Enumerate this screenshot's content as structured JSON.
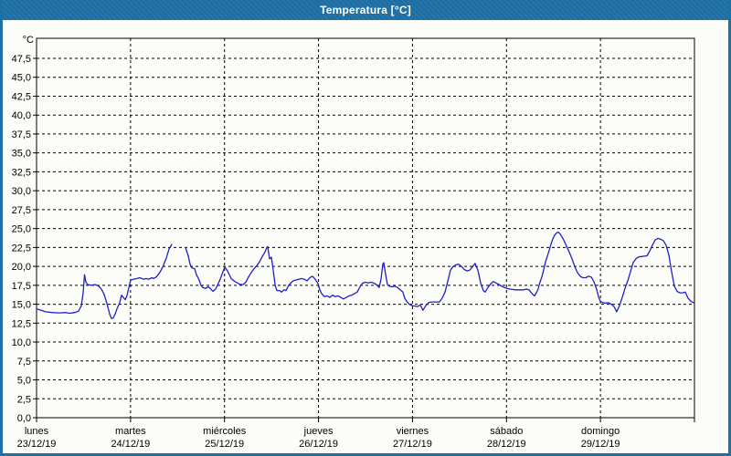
{
  "window": {
    "title": "Temperatura [°C]"
  },
  "colors": {
    "titlebar_blue": "#1d6fa5",
    "content_bg": "#fcfdf8",
    "grid_black": "#000000",
    "line_blue": "#1f1fc8",
    "title_text": "#ffffff"
  },
  "chart_data": {
    "type": "line",
    "title": "Temperatura [°C]",
    "unit_label": "°C",
    "ylim": [
      0,
      50.15
    ],
    "y_tick_step": 2.5,
    "y_ticks": [
      "0,0",
      "2,5",
      "5,0",
      "7,5",
      "10,0",
      "12,5",
      "15,0",
      "17,5",
      "20,0",
      "22,5",
      "25,0",
      "27,5",
      "30,0",
      "32,5",
      "35,0",
      "37,5",
      "40,0",
      "42,5",
      "45,0",
      "47,5"
    ],
    "grid": "dashed",
    "legend": "none",
    "x_days": [
      {
        "name": "lunes",
        "date": "23/12/19"
      },
      {
        "name": "martes",
        "date": "24/12/19"
      },
      {
        "name": "miércoles",
        "date": "25/12/19"
      },
      {
        "name": "jueves",
        "date": "26/12/19"
      },
      {
        "name": "viernes",
        "date": "27/12/19"
      },
      {
        "name": "sábado",
        "date": "28/12/19"
      },
      {
        "name": "domingo",
        "date": "29/12/19"
      }
    ],
    "x_span_days": 7,
    "series": [
      {
        "name": "Temperatura",
        "color": "#1f1fc8",
        "segments": [
          [
            [
              0.0,
              14.4
            ],
            [
              0.049,
              14.2
            ],
            [
              0.097,
              14.0
            ],
            [
              0.165,
              13.9
            ],
            [
              0.243,
              13.85
            ],
            [
              0.311,
              13.9
            ],
            [
              0.35,
              13.8
            ],
            [
              0.408,
              13.9
            ],
            [
              0.447,
              14.1
            ],
            [
              0.476,
              14.8
            ],
            [
              0.496,
              16.5
            ],
            [
              0.51,
              18.9
            ],
            [
              0.525,
              17.9
            ],
            [
              0.544,
              17.6
            ],
            [
              0.583,
              17.5
            ],
            [
              0.622,
              17.6
            ],
            [
              0.661,
              17.4
            ],
            [
              0.69,
              17.0
            ],
            [
              0.719,
              16.3
            ],
            [
              0.749,
              15.1
            ],
            [
              0.778,
              13.7
            ],
            [
              0.797,
              13.1
            ],
            [
              0.817,
              13.2
            ],
            [
              0.836,
              13.7
            ],
            [
              0.856,
              14.4
            ],
            [
              0.885,
              15.2
            ],
            [
              0.904,
              16.2
            ],
            [
              0.924,
              15.9
            ],
            [
              0.943,
              15.6
            ],
            [
              0.962,
              16.1
            ],
            [
              0.982,
              17.2
            ],
            [
              1.001,
              18.2
            ],
            [
              1.031,
              18.3
            ],
            [
              1.069,
              18.4
            ],
            [
              1.099,
              18.5
            ],
            [
              1.137,
              18.3
            ],
            [
              1.167,
              18.4
            ],
            [
              1.196,
              18.3
            ],
            [
              1.225,
              18.5
            ],
            [
              1.244,
              18.4
            ],
            [
              1.274,
              18.6
            ],
            [
              1.293,
              18.9
            ],
            [
              1.312,
              19.2
            ],
            [
              1.342,
              19.9
            ],
            [
              1.381,
              21.1
            ],
            [
              1.41,
              22.3
            ],
            [
              1.439,
              22.9
            ]
          ],
          [
            [
              1.585,
              22.5
            ],
            [
              1.614,
              21.4
            ],
            [
              1.633,
              20.3
            ],
            [
              1.653,
              19.8
            ],
            [
              1.682,
              19.7
            ],
            [
              1.701,
              18.9
            ],
            [
              1.73,
              18.2
            ],
            [
              1.75,
              17.5
            ],
            [
              1.769,
              17.2
            ],
            [
              1.798,
              17.1
            ],
            [
              1.828,
              17.3
            ],
            [
              1.847,
              17.1
            ],
            [
              1.876,
              16.7
            ],
            [
              1.905,
              17.0
            ],
            [
              1.925,
              17.5
            ],
            [
              1.954,
              18.3
            ],
            [
              1.983,
              19.3
            ],
            [
              2.003,
              19.9
            ],
            [
              2.032,
              19.4
            ],
            [
              2.071,
              18.4
            ],
            [
              2.11,
              18.0
            ],
            [
              2.139,
              17.8
            ],
            [
              2.168,
              17.6
            ],
            [
              2.197,
              17.6
            ],
            [
              2.226,
              17.9
            ],
            [
              2.256,
              18.6
            ],
            [
              2.285,
              19.2
            ],
            [
              2.314,
              19.7
            ],
            [
              2.343,
              20.1
            ],
            [
              2.372,
              20.6
            ],
            [
              2.401,
              21.3
            ],
            [
              2.431,
              21.9
            ],
            [
              2.45,
              22.5
            ],
            [
              2.46,
              22.6
            ],
            [
              2.479,
              21.0
            ],
            [
              2.499,
              21.2
            ],
            [
              2.518,
              19.5
            ],
            [
              2.538,
              17.5
            ],
            [
              2.557,
              16.8
            ],
            [
              2.586,
              16.8
            ],
            [
              2.606,
              16.6
            ],
            [
              2.635,
              16.9
            ],
            [
              2.654,
              16.8
            ],
            [
              2.683,
              17.5
            ],
            [
              2.713,
              17.9
            ],
            [
              2.732,
              18.1
            ],
            [
              2.761,
              18.2
            ],
            [
              2.79,
              18.3
            ],
            [
              2.82,
              18.4
            ],
            [
              2.849,
              18.3
            ],
            [
              2.878,
              18.1
            ],
            [
              2.907,
              18.5
            ],
            [
              2.936,
              18.7
            ],
            [
              2.965,
              18.3
            ],
            [
              2.995,
              17.7
            ],
            [
              3.014,
              16.9
            ],
            [
              3.033,
              16.4
            ],
            [
              3.063,
              16.0
            ],
            [
              3.092,
              16.1
            ],
            [
              3.121,
              15.9
            ],
            [
              3.15,
              16.2
            ],
            [
              3.179,
              16.0
            ],
            [
              3.208,
              16.1
            ],
            [
              3.237,
              15.9
            ],
            [
              3.266,
              15.7
            ],
            [
              3.296,
              15.9
            ],
            [
              3.325,
              16.1
            ],
            [
              3.354,
              16.2
            ],
            [
              3.383,
              16.4
            ],
            [
              3.412,
              16.6
            ],
            [
              3.441,
              17.3
            ],
            [
              3.471,
              17.8
            ],
            [
              3.5,
              17.9
            ],
            [
              3.529,
              17.8
            ],
            [
              3.558,
              17.9
            ],
            [
              3.587,
              17.8
            ],
            [
              3.616,
              17.6
            ],
            [
              3.645,
              17.2
            ],
            [
              3.665,
              18.3
            ],
            [
              3.684,
              20.3
            ],
            [
              3.694,
              20.5
            ],
            [
              3.713,
              19.0
            ],
            [
              3.733,
              17.6
            ],
            [
              3.752,
              17.4
            ],
            [
              3.781,
              17.3
            ],
            [
              3.81,
              17.4
            ],
            [
              3.84,
              17.2
            ],
            [
              3.869,
              16.9
            ],
            [
              3.898,
              16.6
            ],
            [
              3.918,
              15.8
            ],
            [
              3.937,
              15.4
            ],
            [
              3.966,
              15.0
            ],
            [
              3.995,
              14.8
            ],
            [
              4.025,
              14.75
            ],
            [
              4.054,
              14.7
            ],
            [
              4.083,
              14.9
            ],
            [
              4.112,
              14.2
            ],
            [
              4.141,
              14.8
            ],
            [
              4.17,
              15.2
            ],
            [
              4.2,
              15.3
            ],
            [
              4.229,
              15.3
            ],
            [
              4.258,
              15.3
            ],
            [
              4.287,
              15.3
            ],
            [
              4.316,
              15.8
            ],
            [
              4.346,
              16.6
            ],
            [
              4.375,
              18.0
            ],
            [
              4.404,
              19.5
            ],
            [
              4.433,
              20.0
            ],
            [
              4.462,
              20.2
            ],
            [
              4.491,
              20.3
            ],
            [
              4.521,
              20.0
            ],
            [
              4.55,
              19.6
            ],
            [
              4.579,
              19.4
            ],
            [
              4.608,
              19.5
            ],
            [
              4.637,
              19.9
            ],
            [
              4.666,
              20.4
            ],
            [
              4.696,
              19.5
            ],
            [
              4.725,
              17.8
            ],
            [
              4.754,
              16.8
            ],
            [
              4.773,
              16.6
            ],
            [
              4.802,
              17.2
            ],
            [
              4.832,
              17.7
            ],
            [
              4.861,
              18.0
            ],
            [
              4.89,
              17.8
            ],
            [
              4.919,
              17.6
            ],
            [
              4.948,
              17.4
            ],
            [
              4.977,
              17.2
            ],
            [
              5.007,
              17.1
            ],
            [
              5.036,
              17.0
            ],
            [
              5.065,
              16.95
            ],
            [
              5.094,
              16.9
            ],
            [
              5.123,
              16.9
            ],
            [
              5.153,
              16.9
            ],
            [
              5.182,
              16.9
            ],
            [
              5.211,
              17.0
            ],
            [
              5.24,
              16.9
            ],
            [
              5.259,
              16.6
            ],
            [
              5.279,
              16.3
            ],
            [
              5.298,
              16.1
            ],
            [
              5.318,
              16.5
            ],
            [
              5.337,
              17.0
            ],
            [
              5.356,
              17.9
            ],
            [
              5.376,
              18.6
            ],
            [
              5.395,
              19.5
            ],
            [
              5.415,
              20.6
            ],
            [
              5.434,
              21.3
            ],
            [
              5.454,
              22.1
            ],
            [
              5.473,
              22.9
            ],
            [
              5.492,
              23.6
            ],
            [
              5.512,
              24.1
            ],
            [
              5.531,
              24.4
            ],
            [
              5.551,
              24.55
            ],
            [
              5.57,
              24.3
            ],
            [
              5.59,
              23.9
            ],
            [
              5.609,
              23.5
            ],
            [
              5.638,
              22.7
            ],
            [
              5.667,
              21.9
            ],
            [
              5.697,
              21.0
            ],
            [
              5.726,
              20.0
            ],
            [
              5.755,
              19.2
            ],
            [
              5.784,
              18.7
            ],
            [
              5.813,
              18.5
            ],
            [
              5.843,
              18.5
            ],
            [
              5.872,
              18.7
            ],
            [
              5.901,
              18.6
            ],
            [
              5.93,
              18.0
            ],
            [
              5.959,
              17.0
            ],
            [
              5.979,
              16.0
            ],
            [
              5.998,
              15.4
            ],
            [
              6.027,
              15.2
            ],
            [
              6.057,
              15.15
            ],
            [
              6.086,
              15.2
            ],
            [
              6.115,
              15.0
            ],
            [
              6.144,
              14.7
            ],
            [
              6.173,
              14.0
            ],
            [
              6.202,
              14.8
            ],
            [
              6.232,
              15.9
            ],
            [
              6.261,
              17.1
            ],
            [
              6.29,
              18.1
            ],
            [
              6.319,
              19.3
            ],
            [
              6.348,
              20.5
            ],
            [
              6.377,
              21.0
            ],
            [
              6.407,
              21.25
            ],
            [
              6.436,
              21.3
            ],
            [
              6.465,
              21.35
            ],
            [
              6.494,
              21.4
            ],
            [
              6.523,
              22.0
            ],
            [
              6.553,
              22.8
            ],
            [
              6.582,
              23.5
            ],
            [
              6.611,
              23.7
            ],
            [
              6.64,
              23.6
            ],
            [
              6.669,
              23.4
            ],
            [
              6.699,
              22.8
            ],
            [
              6.728,
              21.5
            ],
            [
              6.757,
              19.3
            ],
            [
              6.786,
              17.4
            ],
            [
              6.815,
              16.7
            ],
            [
              6.844,
              16.5
            ],
            [
              6.874,
              16.5
            ],
            [
              6.903,
              16.6
            ],
            [
              6.932,
              15.8
            ],
            [
              6.961,
              15.4
            ],
            [
              6.99,
              15.2
            ]
          ]
        ]
      }
    ]
  }
}
